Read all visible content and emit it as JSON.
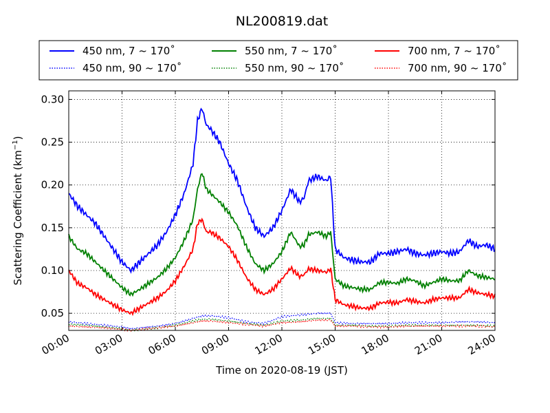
{
  "chart_data": {
    "type": "line",
    "title": "NL200819.dat",
    "xlabel": "Time on 2020-08-19 (JST)",
    "ylabel": "Scattering Coefficient (km",
    "ylabel_sup": "−1",
    "ylabel_close": ")",
    "xlim": [
      0,
      24
    ],
    "ylim": [
      0.03,
      0.31
    ],
    "grid": true,
    "legend_position": "top",
    "xticks": [
      {
        "v": 0,
        "label": "00:00"
      },
      {
        "v": 3,
        "label": "03:00"
      },
      {
        "v": 6,
        "label": "06:00"
      },
      {
        "v": 9,
        "label": "09:00"
      },
      {
        "v": 12,
        "label": "12:00"
      },
      {
        "v": 15,
        "label": "15:00"
      },
      {
        "v": 18,
        "label": "18:00"
      },
      {
        "v": 21,
        "label": "21:00"
      },
      {
        "v": 24,
        "label": "24:00"
      }
    ],
    "yticks": [
      {
        "v": 0.05,
        "label": "0.05"
      },
      {
        "v": 0.1,
        "label": "0.10"
      },
      {
        "v": 0.15,
        "label": "0.15"
      },
      {
        "v": 0.2,
        "label": "0.20"
      },
      {
        "v": 0.25,
        "label": "0.25"
      },
      {
        "v": 0.3,
        "label": "0.30"
      }
    ],
    "series": [
      {
        "name": "450 nm, 7 ~ 170˚",
        "color": "#0000ff",
        "style": "solid",
        "x": [
          0,
          0.5,
          1,
          1.5,
          2,
          2.5,
          3,
          3.5,
          4,
          4.5,
          5,
          5.5,
          6,
          6.5,
          7,
          7.25,
          7.5,
          7.75,
          8,
          8.5,
          9,
          9.5,
          10,
          10.5,
          11,
          11.5,
          12,
          12.5,
          13,
          13.25,
          13.5,
          14,
          14.5,
          14.75,
          15,
          15.5,
          16,
          16.5,
          17,
          17.5,
          18,
          18.5,
          19,
          19.5,
          20,
          20.5,
          21,
          21.5,
          22,
          22.5,
          23,
          23.5,
          24
        ],
        "y": [
          0.19,
          0.175,
          0.165,
          0.155,
          0.14,
          0.125,
          0.11,
          0.1,
          0.11,
          0.12,
          0.13,
          0.145,
          0.165,
          0.19,
          0.225,
          0.275,
          0.29,
          0.27,
          0.265,
          0.25,
          0.225,
          0.205,
          0.175,
          0.15,
          0.14,
          0.15,
          0.17,
          0.195,
          0.18,
          0.185,
          0.205,
          0.21,
          0.205,
          0.21,
          0.125,
          0.115,
          0.112,
          0.11,
          0.11,
          0.12,
          0.12,
          0.122,
          0.125,
          0.12,
          0.118,
          0.12,
          0.122,
          0.12,
          0.122,
          0.135,
          0.128,
          0.13,
          0.125
        ]
      },
      {
        "name": "550 nm, 7 ~ 170˚",
        "color": "#008000",
        "style": "solid",
        "x": [
          0,
          0.5,
          1,
          1.5,
          2,
          2.5,
          3,
          3.5,
          4,
          4.5,
          5,
          5.5,
          6,
          6.5,
          7,
          7.25,
          7.5,
          7.75,
          8,
          8.5,
          9,
          9.5,
          10,
          10.5,
          11,
          11.5,
          12,
          12.5,
          13,
          13.25,
          13.5,
          14,
          14.5,
          14.75,
          15,
          15.5,
          16,
          16.5,
          17,
          17.5,
          18,
          18.5,
          19,
          19.5,
          20,
          20.5,
          21,
          21.5,
          22,
          22.5,
          23,
          23.5,
          24
        ],
        "y": [
          0.14,
          0.125,
          0.12,
          0.11,
          0.1,
          0.09,
          0.08,
          0.072,
          0.078,
          0.085,
          0.092,
          0.102,
          0.115,
          0.135,
          0.16,
          0.195,
          0.215,
          0.195,
          0.19,
          0.18,
          0.168,
          0.152,
          0.128,
          0.108,
          0.1,
          0.108,
          0.122,
          0.145,
          0.128,
          0.13,
          0.142,
          0.145,
          0.14,
          0.145,
          0.09,
          0.082,
          0.08,
          0.078,
          0.078,
          0.086,
          0.086,
          0.085,
          0.09,
          0.088,
          0.082,
          0.086,
          0.09,
          0.088,
          0.088,
          0.1,
          0.094,
          0.092,
          0.09
        ]
      },
      {
        "name": "700 nm, 7 ~ 170˚",
        "color": "#ff0000",
        "style": "solid",
        "x": [
          0,
          0.5,
          1,
          1.5,
          2,
          2.5,
          3,
          3.5,
          4,
          4.5,
          5,
          5.5,
          6,
          6.5,
          7,
          7.25,
          7.5,
          7.75,
          8,
          8.5,
          9,
          9.5,
          10,
          10.5,
          11,
          11.5,
          12,
          12.5,
          13,
          13.25,
          13.5,
          14,
          14.5,
          14.75,
          15,
          15.5,
          16,
          16.5,
          17,
          17.5,
          18,
          18.5,
          19,
          19.5,
          20,
          20.5,
          21,
          21.5,
          22,
          22.5,
          23,
          23.5,
          24
        ],
        "y": [
          0.1,
          0.085,
          0.08,
          0.072,
          0.066,
          0.06,
          0.054,
          0.05,
          0.056,
          0.062,
          0.068,
          0.076,
          0.088,
          0.105,
          0.125,
          0.155,
          0.16,
          0.145,
          0.145,
          0.138,
          0.128,
          0.112,
          0.092,
          0.078,
          0.072,
          0.078,
          0.09,
          0.103,
          0.093,
          0.095,
          0.102,
          0.1,
          0.098,
          0.102,
          0.066,
          0.06,
          0.058,
          0.056,
          0.056,
          0.062,
          0.063,
          0.062,
          0.066,
          0.064,
          0.062,
          0.066,
          0.068,
          0.068,
          0.068,
          0.078,
          0.074,
          0.072,
          0.07
        ]
      },
      {
        "name": "450 nm, 90 ~ 170˚",
        "color": "#0000ff",
        "style": "dotted",
        "x": [
          0,
          1,
          2,
          3,
          3.5,
          4,
          5,
          6,
          7,
          7.5,
          8,
          9,
          10,
          11,
          12,
          13,
          14,
          14.5,
          14.75,
          15,
          16,
          17,
          18,
          19,
          20,
          21,
          22,
          23,
          24
        ],
        "y": [
          0.04,
          0.038,
          0.036,
          0.034,
          0.032,
          0.033,
          0.035,
          0.038,
          0.044,
          0.047,
          0.047,
          0.045,
          0.04,
          0.038,
          0.046,
          0.048,
          0.05,
          0.05,
          0.05,
          0.039,
          0.038,
          0.038,
          0.038,
          0.039,
          0.039,
          0.039,
          0.04,
          0.04,
          0.039
        ]
      },
      {
        "name": "550 nm, 90 ~ 170˚",
        "color": "#008000",
        "style": "dotted",
        "x": [
          0,
          1,
          2,
          3,
          3.5,
          4,
          5,
          6,
          7,
          7.5,
          8,
          9,
          10,
          11,
          12,
          13,
          14,
          14.5,
          14.75,
          15,
          16,
          17,
          18,
          19,
          20,
          21,
          22,
          23,
          24
        ],
        "y": [
          0.037,
          0.036,
          0.034,
          0.032,
          0.03,
          0.031,
          0.033,
          0.036,
          0.041,
          0.043,
          0.043,
          0.041,
          0.038,
          0.036,
          0.041,
          0.042,
          0.044,
          0.044,
          0.044,
          0.036,
          0.036,
          0.035,
          0.035,
          0.036,
          0.036,
          0.036,
          0.036,
          0.036,
          0.035
        ]
      },
      {
        "name": "700 nm, 90 ~ 170˚",
        "color": "#ff0000",
        "style": "dotted",
        "x": [
          0,
          1,
          2,
          3,
          3.5,
          4,
          5,
          6,
          7,
          7.5,
          8,
          9,
          10,
          11,
          12,
          13,
          14,
          14.5,
          14.75,
          15,
          16,
          17,
          18,
          19,
          20,
          21,
          22,
          23,
          24
        ],
        "y": [
          0.035,
          0.034,
          0.033,
          0.031,
          0.03,
          0.031,
          0.033,
          0.035,
          0.039,
          0.041,
          0.041,
          0.039,
          0.037,
          0.035,
          0.039,
          0.04,
          0.042,
          0.042,
          0.042,
          0.035,
          0.035,
          0.034,
          0.034,
          0.035,
          0.035,
          0.035,
          0.035,
          0.035,
          0.034
        ]
      }
    ]
  }
}
